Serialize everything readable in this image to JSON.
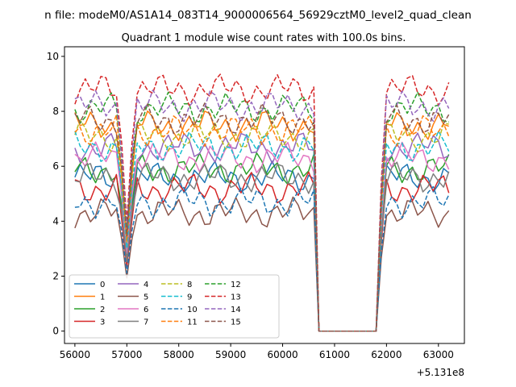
{
  "chart_data": {
    "type": "line",
    "suptitle": "n file: modeM0/AS1A14_083T14_9000006564_56929cztM0_level2_quad_clean",
    "title": "Quadrant 1 module wise count rates with 100.0s bins.",
    "xlabel": "",
    "ylabel": "",
    "x_offset_label": "+5.131e8",
    "xlim": [
      55800,
      63500
    ],
    "ylim": [
      -0.45,
      10.35
    ],
    "x_ticks": [
      56000,
      57000,
      58000,
      59000,
      60000,
      61000,
      62000,
      63000
    ],
    "x_tick_labels": [
      "56000",
      "57000",
      "58000",
      "59000",
      "60000",
      "61000",
      "62000",
      "63000"
    ],
    "y_ticks": [
      0,
      2,
      4,
      6,
      8,
      10
    ],
    "y_tick_labels": [
      "0",
      "2",
      "4",
      "6",
      "8",
      "10"
    ],
    "legend_position": "lower-left",
    "legend_columns": 4,
    "series": [
      {
        "name": "0",
        "color": "#1f77b4",
        "dash": "solid",
        "level": 5.6
      },
      {
        "name": "1",
        "color": "#ff7f0e",
        "dash": "solid",
        "level": 7.5
      },
      {
        "name": "2",
        "color": "#2ca02c",
        "dash": "solid",
        "level": 5.9
      },
      {
        "name": "3",
        "color": "#d62728",
        "dash": "solid",
        "level": 5.2
      },
      {
        "name": "4",
        "color": "#9467bd",
        "dash": "solid",
        "level": 6.7
      },
      {
        "name": "5",
        "color": "#8c564b",
        "dash": "solid",
        "level": 4.3
      },
      {
        "name": "6",
        "color": "#e377c2",
        "dash": "solid",
        "level": 6.3
      },
      {
        "name": "7",
        "color": "#7f7f7f",
        "dash": "solid",
        "level": 5.6
      },
      {
        "name": "8",
        "color": "#bcbd22",
        "dash": "dashed",
        "level": 7.1
      },
      {
        "name": "9",
        "color": "#17becf",
        "dash": "dashed",
        "level": 6.7
      },
      {
        "name": "10",
        "color": "#1f77b4",
        "dash": "dashed",
        "level": 4.7
      },
      {
        "name": "11",
        "color": "#ff7f0e",
        "dash": "dashed",
        "level": 7.3
      },
      {
        "name": "12",
        "color": "#2ca02c",
        "dash": "dashed",
        "level": 8.1
      },
      {
        "name": "13",
        "color": "#d62728",
        "dash": "dashed",
        "level": 8.8
      },
      {
        "name": "14",
        "color": "#9467bd",
        "dash": "dashed",
        "level": 8.2
      },
      {
        "name": "15",
        "color": "#8c564b",
        "dash": "dashed",
        "level": 7.7
      }
    ],
    "time_structure": {
      "bin_width_s": 100,
      "start": 56000,
      "end": 63200,
      "dip_time": 57000,
      "gap_start": 60700,
      "gap_end": 61800,
      "gap_value": 0
    }
  }
}
